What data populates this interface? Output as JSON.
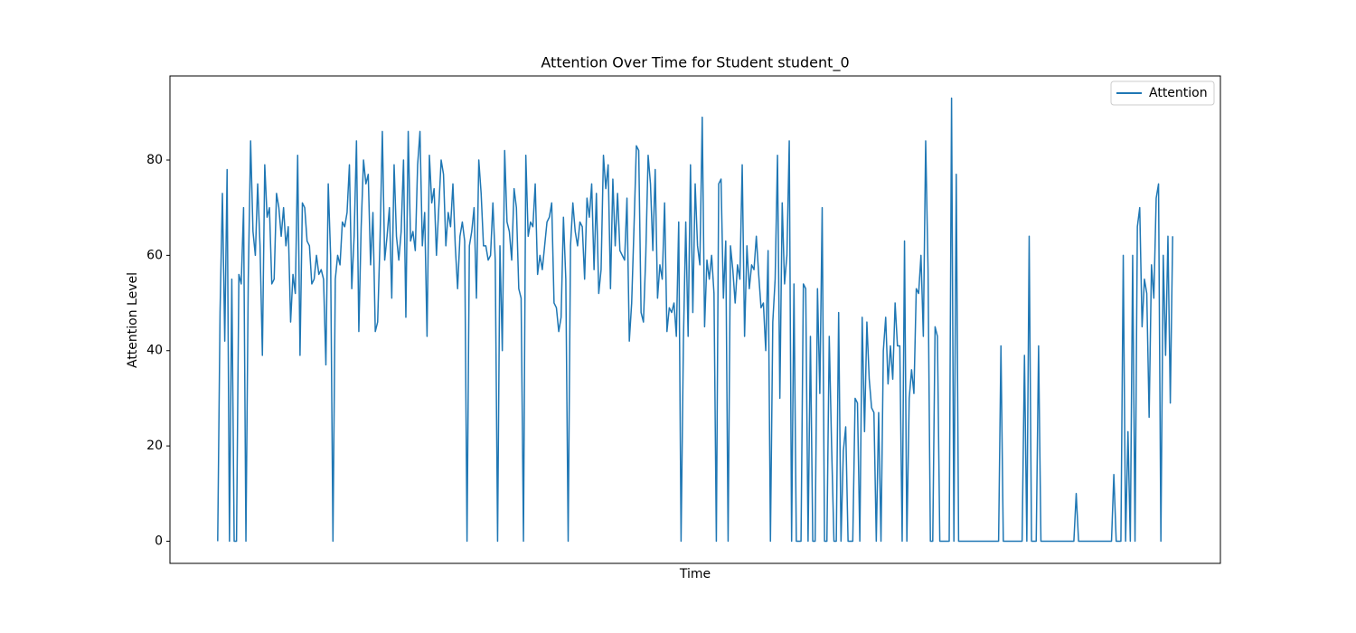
{
  "chart_data": {
    "type": "line",
    "title": "Attention Over Time for Student student_0",
    "x_label": "Time",
    "y_label": "Attention Level",
    "ylim": [
      -4.65,
      97.65
    ],
    "yticks": [
      0,
      20,
      40,
      60,
      80
    ],
    "legend": "upper right",
    "categories": [
      null,
      null,
      null,
      null,
      null,
      null,
      null,
      null,
      null,
      null,
      null,
      null,
      null,
      null,
      null,
      null,
      null,
      null,
      null,
      null,
      null,
      null,
      null,
      null,
      null,
      null,
      null,
      null,
      null,
      null,
      null,
      null,
      null,
      null,
      null,
      null,
      null,
      null,
      null,
      null,
      null,
      null,
      null,
      null,
      null,
      null,
      null,
      null,
      null,
      null,
      null,
      null,
      null,
      null,
      null,
      null,
      null,
      null,
      null,
      null,
      null,
      null,
      null,
      null,
      null,
      null,
      null,
      null,
      null,
      null,
      null,
      null,
      null,
      null,
      null,
      null,
      null,
      null,
      null,
      null,
      null,
      null,
      null,
      null,
      null,
      null,
      null,
      null,
      null,
      null,
      null,
      null,
      null,
      null,
      null,
      null,
      null,
      null,
      null,
      null,
      null,
      null,
      null,
      null,
      null,
      null,
      null,
      null,
      null,
      null,
      null,
      null,
      null,
      null,
      null,
      null,
      null,
      null,
      null,
      null,
      null,
      null,
      null,
      null,
      null,
      null,
      null,
      null,
      null,
      null,
      null,
      null,
      null,
      null,
      null,
      null,
      null,
      null,
      null,
      null,
      null,
      null,
      null,
      null,
      null,
      null,
      null,
      null,
      null,
      null,
      null,
      null,
      null,
      null,
      null,
      null,
      null,
      null,
      null,
      null,
      null,
      null,
      null,
      null,
      null,
      null,
      null,
      null,
      null,
      null,
      null,
      null,
      null,
      null,
      null,
      null,
      null,
      null,
      null,
      null,
      null,
      null,
      null,
      null,
      null,
      null,
      null,
      null,
      null,
      null,
      null,
      null,
      null,
      null,
      null,
      null,
      null,
      null,
      null,
      null,
      null,
      null,
      null,
      null,
      null,
      null,
      null,
      null,
      null,
      null,
      null,
      null,
      null,
      null,
      null,
      null,
      null,
      null,
      null,
      null,
      null,
      null,
      null,
      null,
      null,
      null,
      null,
      null,
      null,
      null,
      null,
      null,
      null,
      null,
      null,
      null,
      null,
      null,
      null,
      null,
      null,
      null,
      null,
      null,
      null,
      null,
      null,
      null,
      null,
      null,
      null,
      null,
      null,
      null,
      null,
      null,
      null,
      null,
      null,
      null,
      null,
      null,
      null,
      null,
      null,
      null,
      null,
      null,
      null,
      null,
      null,
      null,
      null,
      null,
      null,
      null,
      null,
      null,
      null,
      null,
      null,
      null,
      null,
      null,
      null,
      null,
      null,
      null,
      null,
      null,
      null,
      null,
      null,
      null,
      null,
      null,
      null,
      null,
      null,
      null,
      null,
      null,
      null,
      null,
      null,
      null,
      null,
      null,
      null,
      null,
      null,
      null,
      null,
      null,
      null,
      null,
      null,
      null,
      null,
      null,
      null,
      null,
      null,
      null,
      null,
      null,
      null,
      null,
      null,
      null,
      null,
      null,
      null,
      null,
      null,
      null,
      null,
      null,
      null,
      null,
      null,
      null,
      null,
      null,
      null,
      null,
      null,
      null,
      null,
      null,
      null,
      null,
      null,
      null,
      null,
      null,
      null,
      null,
      null,
      null,
      null,
      null,
      null,
      null,
      null,
      null,
      null,
      null,
      null,
      null,
      null,
      null,
      null,
      null,
      null,
      null,
      null,
      null,
      null,
      null,
      null,
      null,
      null,
      null,
      null,
      null,
      null,
      null,
      null,
      null,
      null,
      null,
      null,
      null,
      null,
      null,
      null,
      null,
      null,
      null,
      null,
      null,
      null,
      null,
      null,
      null,
      null
    ],
    "series": [
      {
        "name": "Attention",
        "color": "#1f77b4",
        "values": [
          0,
          48,
          73,
          42,
          78,
          0,
          55,
          0,
          0,
          56,
          54,
          70,
          0,
          55,
          84,
          65,
          60,
          75,
          62,
          39,
          79,
          68,
          70,
          54,
          55,
          73,
          70,
          64,
          70,
          62,
          66,
          46,
          56,
          52,
          81,
          39,
          71,
          70,
          63,
          62,
          54,
          55,
          60,
          56,
          57,
          55,
          37,
          75,
          60,
          0,
          55,
          60,
          58,
          67,
          66,
          69,
          79,
          53,
          64,
          84,
          44,
          66,
          80,
          75,
          77,
          58,
          69,
          44,
          46,
          63,
          86,
          59,
          64,
          70,
          51,
          79,
          64,
          59,
          65,
          80,
          47,
          86,
          63,
          65,
          61,
          79,
          86,
          62,
          69,
          43,
          81,
          71,
          74,
          60,
          70,
          80,
          77,
          62,
          69,
          66,
          75,
          62,
          53,
          64,
          67,
          63,
          0,
          62,
          65,
          70,
          51,
          80,
          73,
          62,
          62,
          59,
          60,
          71,
          59,
          0,
          62,
          40,
          82,
          67,
          65,
          59,
          74,
          70,
          53,
          51,
          0,
          81,
          64,
          67,
          66,
          75,
          56,
          60,
          57,
          62,
          67,
          68,
          71,
          50,
          49,
          44,
          47,
          68,
          55,
          0,
          62,
          71,
          65,
          62,
          67,
          66,
          55,
          72,
          68,
          75,
          57,
          73,
          52,
          57,
          81,
          74,
          79,
          53,
          76,
          62,
          73,
          61,
          60,
          59,
          72,
          42,
          50,
          66,
          83,
          82,
          48,
          46,
          60,
          81,
          75,
          61,
          78,
          51,
          58,
          55,
          71,
          44,
          49,
          48,
          50,
          43,
          67,
          0,
          42,
          67,
          43,
          79,
          48,
          75,
          62,
          58,
          89,
          45,
          59,
          55,
          60,
          52,
          0,
          75,
          76,
          51,
          63,
          0,
          62,
          57,
          50,
          58,
          55,
          79,
          43,
          62,
          53,
          58,
          57,
          64,
          56,
          49,
          50,
          40,
          61,
          0,
          46,
          55,
          81,
          30,
          71,
          54,
          60,
          84,
          0,
          54,
          0,
          0,
          0,
          54,
          53,
          0,
          43,
          0,
          0,
          53,
          31,
          70,
          0,
          0,
          43,
          20,
          0,
          0,
          48,
          0,
          19,
          24,
          0,
          0,
          0,
          30,
          29,
          0,
          47,
          23,
          46,
          34,
          28,
          27,
          0,
          27,
          0,
          40,
          47,
          33,
          41,
          34,
          50,
          41,
          41,
          0,
          63,
          0,
          30,
          36,
          31,
          53,
          52,
          60,
          43,
          84,
          57,
          0,
          0,
          45,
          43,
          0,
          0,
          0,
          0,
          0,
          93,
          0,
          77,
          0,
          0,
          0,
          0,
          0,
          0,
          0,
          0,
          0,
          0,
          0,
          0,
          0,
          0,
          0,
          0,
          0,
          0,
          41,
          0,
          0,
          0,
          0,
          0,
          0,
          0,
          0,
          0,
          39,
          0,
          64,
          0,
          0,
          0,
          41,
          0,
          0,
          0,
          0,
          0,
          0,
          0,
          0,
          0,
          0,
          0,
          0,
          0,
          0,
          0,
          10,
          0,
          0,
          0,
          0,
          0,
          0,
          0,
          0,
          0,
          0,
          0,
          0,
          0,
          0,
          0,
          14,
          0,
          0,
          0,
          60,
          0,
          23,
          0,
          60,
          0,
          66,
          70,
          45,
          55,
          52,
          26,
          58,
          51,
          72,
          75,
          0,
          60,
          39,
          64,
          29,
          64
        ]
      }
    ]
  }
}
